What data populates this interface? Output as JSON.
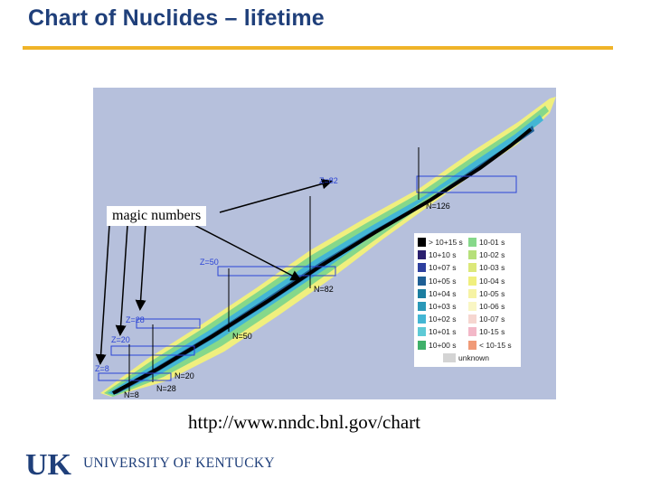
{
  "slide": {
    "title": "Chart of Nuclides – lifetime",
    "source_url": "http://www.nndc.bnl.gov/chart"
  },
  "chart": {
    "callout": "magic numbers",
    "z_labels": [
      "Z=82",
      "Z=50",
      "Z=28",
      "Z=20",
      "Z=8"
    ],
    "n_labels": [
      "N=126",
      "N=82",
      "N=50",
      "N=28",
      "N=20",
      "N=8"
    ],
    "legend": [
      {
        "label": "> 10+15 s",
        "color": "#000000"
      },
      {
        "label": "10+10 s",
        "color": "#2a1f6e"
      },
      {
        "label": "10+07 s",
        "color": "#2e3f9e"
      },
      {
        "label": "10+05 s",
        "color": "#1f5f95"
      },
      {
        "label": "10+04 s",
        "color": "#1c7ea0"
      },
      {
        "label": "10+03 s",
        "color": "#2a98b8"
      },
      {
        "label": "10+02 s",
        "color": "#43b6d4"
      },
      {
        "label": "10+01 s",
        "color": "#5ecad6"
      },
      {
        "label": "10+00 s",
        "color": "#3fb06a"
      },
      {
        "label": "10-01 s",
        "color": "#86d88a"
      },
      {
        "label": "10-02 s",
        "color": "#b6e07a"
      },
      {
        "label": "10-03 s",
        "color": "#dce87a"
      },
      {
        "label": "10-04 s",
        "color": "#f0ef7e"
      },
      {
        "label": "10-05 s",
        "color": "#f6f3a4"
      },
      {
        "label": "10-06 s",
        "color": "#f9f6c4"
      },
      {
        "label": "10-07 s",
        "color": "#f6d6d0"
      },
      {
        "label": "10-15 s",
        "color": "#f3b8c8"
      },
      {
        "label": "< 10-15 s",
        "color": "#f09a78"
      },
      {
        "label": "unknown",
        "color": "#d4d4d4"
      }
    ]
  },
  "footer": {
    "logo_letters": "UK",
    "institution": "UNIVERSITY OF KENTUCKY"
  },
  "colors": {
    "title": "#1f3f7a",
    "rule": "#f0b429",
    "chart_background": "#b6c0dc",
    "magic_line": "#2b43d6"
  }
}
